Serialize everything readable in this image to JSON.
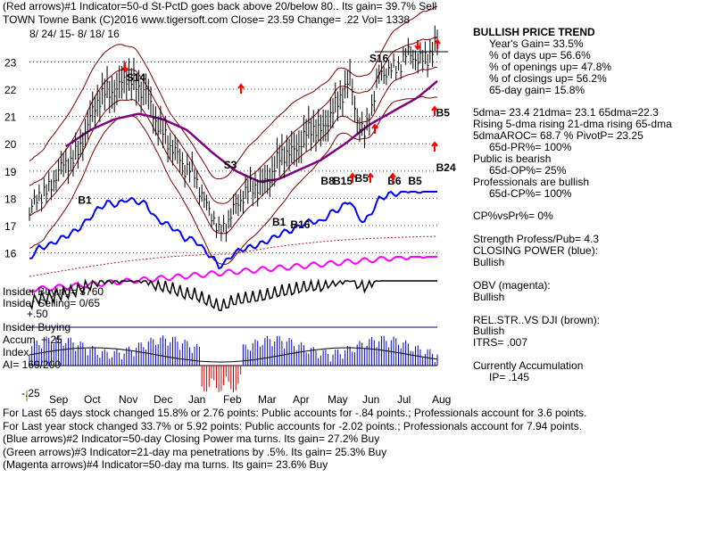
{
  "header": {
    "line1": "(Red arrows)#1 Indicator=50-d St-PctD goes back above 20/below 80.. Its gain= 39.7% Sell",
    "line2": "TOWN   Towne Bank  (C)2016 www.tigersoft.com    Close=  23.59  Change= .22 Vol= 1338",
    "date_range": "8/ 24/ 15-  8/ 18/ 16"
  },
  "side_panel": [
    {
      "text": "BULLISH PRICE TREND",
      "bold": true,
      "indent": 0
    },
    {
      "text": "Year's Gain= 33.5%",
      "bold": false,
      "indent": 18
    },
    {
      "text": "% of days up= 56.6%",
      "bold": false,
      "indent": 18
    },
    {
      "text": "% of openings up= 47.8%",
      "bold": false,
      "indent": 18
    },
    {
      "text": "% of closings up= 56.2%",
      "bold": false,
      "indent": 18
    },
    {
      "text": "65-day gain= 15.8%",
      "bold": false,
      "indent": 18
    },
    {
      "text": "",
      "bold": false,
      "indent": 0
    },
    {
      "text": "5dma= 23.4  21dma= 23.1  65dma=22.3",
      "bold": false,
      "indent": 0
    },
    {
      "text": "Rising 5-dma rising 21-dma rising 65-dma",
      "bold": false,
      "indent": 0
    },
    {
      "text": "5dmaAROC= 68.7 %  PivotP= 23.25",
      "bold": false,
      "indent": 0
    },
    {
      "text": "65d-PR%= 100%",
      "bold": false,
      "indent": 18
    },
    {
      "text": "Public is bearish",
      "bold": false,
      "indent": 0
    },
    {
      "text": "65d-OP%=  25%",
      "bold": false,
      "indent": 18
    },
    {
      "text": "Professionals are bullish",
      "bold": false,
      "indent": 0
    },
    {
      "text": "65d-CP%= 100%",
      "bold": false,
      "indent": 18
    },
    {
      "text": "",
      "bold": false,
      "indent": 0
    },
    {
      "text": "CP%vsPr%=  0%",
      "bold": false,
      "indent": 0
    },
    {
      "text": "",
      "bold": false,
      "indent": 0
    },
    {
      "text": "Strength Profess/Pub= 4.3",
      "bold": false,
      "indent": 0
    },
    {
      "text": "CLOSING POWER (blue):",
      "bold": false,
      "indent": 0
    },
    {
      "text": "Bullish",
      "bold": false,
      "indent": 0
    },
    {
      "text": "",
      "bold": false,
      "indent": 0
    },
    {
      "text": "OBV (magenta):",
      "bold": false,
      "indent": 0
    },
    {
      "text": "Bullish",
      "bold": false,
      "indent": 0
    },
    {
      "text": "",
      "bold": false,
      "indent": 0
    },
    {
      "text": "REL.STR..VS DJI (brown):",
      "bold": false,
      "indent": 0
    },
    {
      "text": "Bullish",
      "bold": false,
      "indent": 0
    },
    {
      "text": "ITRS= .007",
      "bold": false,
      "indent": 0
    },
    {
      "text": "",
      "bold": false,
      "indent": 0
    },
    {
      "text": "Currently Accumulation",
      "bold": false,
      "indent": 0
    },
    {
      "text": "IP=  .145",
      "bold": false,
      "indent": 18
    }
  ],
  "insider": {
    "buying": "Insider Buying= 3760",
    "selling": "Insider Selling= 0/65",
    "plus50": "+.50",
    "buying2": "Insider Buying",
    "accum": "Accum",
    "plus25": "+.25",
    "index": "Index",
    "ai": "AI= 169/200",
    "minus25": "-.25"
  },
  "footer": [
    "For Last 65 days stock changed  15.8% or  2.76 points:  Public accounts for -.84 points.;  Professionals account for  3.6 points.",
    "For Last year stock changed  33.7% or  5.92 points:  Public accounts for -2.02 points.;  Professionals account for  7.94 points.",
    "(Blue arrows)#2 Indicator=50-day Closing Power ma turns. Its gain= 27.2% Buy",
    "(Green arrows)#3 Indicator=21-day ma penetrations by .5%. Its gain= 25.3% Buy",
    "(Magenta arrows)#4 Indicator=50-day ma turns. Its gain= 23.6% Buy"
  ],
  "colors": {
    "price": "#000000",
    "band": "#800000",
    "ma65": "#800080",
    "closing_power": "#0000ff",
    "obv": "#ff00ff",
    "rel_strength": "#b22222",
    "grid": "#008000",
    "accum": "#0000c0",
    "distrib": "#d00000",
    "arrow_red": "#ff0000",
    "rsi_line": "#000080"
  },
  "chart_data": {
    "type": "line",
    "y_ticks": [
      "16",
      "17",
      "18",
      "19",
      "20",
      "21",
      "22",
      "23"
    ],
    "ylim": [
      15.3,
      23.8
    ],
    "x_ticks": [
      "Sep",
      "Oct",
      "Nov",
      "Dec",
      "Jan",
      "Feb",
      "Mar",
      "Apr",
      "May",
      "Jun",
      "Jul",
      "Aug"
    ],
    "price_close": [
      {
        "x": 0,
        "y": 17.3
      },
      {
        "x": 8,
        "y": 18.2
      },
      {
        "x": 16,
        "y": 18.4
      },
      {
        "x": 24,
        "y": 18.9
      },
      {
        "x": 32,
        "y": 19.3
      },
      {
        "x": 40,
        "y": 19.8
      },
      {
        "x": 48,
        "y": 20.6
      },
      {
        "x": 56,
        "y": 21.5
      },
      {
        "x": 64,
        "y": 22.1
      },
      {
        "x": 72,
        "y": 21.9
      },
      {
        "x": 80,
        "y": 22.4
      },
      {
        "x": 88,
        "y": 22.2
      },
      {
        "x": 96,
        "y": 22.0
      },
      {
        "x": 104,
        "y": 20.7
      },
      {
        "x": 112,
        "y": 20.3
      },
      {
        "x": 120,
        "y": 19.8
      },
      {
        "x": 128,
        "y": 19.0
      },
      {
        "x": 136,
        "y": 18.9
      },
      {
        "x": 144,
        "y": 18.0
      },
      {
        "x": 152,
        "y": 17.2
      },
      {
        "x": 156,
        "y": 16.6
      },
      {
        "x": 160,
        "y": 16.8
      },
      {
        "x": 168,
        "y": 17.7
      },
      {
        "x": 176,
        "y": 18.1
      },
      {
        "x": 184,
        "y": 18.3
      },
      {
        "x": 192,
        "y": 18.6
      },
      {
        "x": 200,
        "y": 19.0
      },
      {
        "x": 208,
        "y": 19.5
      },
      {
        "x": 216,
        "y": 19.7
      },
      {
        "x": 224,
        "y": 20.2
      },
      {
        "x": 232,
        "y": 20.5
      },
      {
        "x": 240,
        "y": 20.4
      },
      {
        "x": 248,
        "y": 21.2
      },
      {
        "x": 256,
        "y": 21.6
      },
      {
        "x": 264,
        "y": 22.3
      },
      {
        "x": 270,
        "y": 21.0
      },
      {
        "x": 276,
        "y": 20.4
      },
      {
        "x": 282,
        "y": 21.3
      },
      {
        "x": 288,
        "y": 22.4
      },
      {
        "x": 296,
        "y": 22.8
      },
      {
        "x": 304,
        "y": 22.9
      },
      {
        "x": 312,
        "y": 23.2
      },
      {
        "x": 320,
        "y": 23.1
      },
      {
        "x": 328,
        "y": 23.3
      },
      {
        "x": 336,
        "y": 23.59
      }
    ],
    "ma65": [
      {
        "x": 30,
        "y": 19.9
      },
      {
        "x": 50,
        "y": 20.5
      },
      {
        "x": 70,
        "y": 20.9
      },
      {
        "x": 90,
        "y": 21.1
      },
      {
        "x": 110,
        "y": 20.9
      },
      {
        "x": 130,
        "y": 20.5
      },
      {
        "x": 150,
        "y": 19.7
      },
      {
        "x": 170,
        "y": 19.0
      },
      {
        "x": 190,
        "y": 18.6
      },
      {
        "x": 205,
        "y": 18.7
      },
      {
        "x": 220,
        "y": 19.0
      },
      {
        "x": 240,
        "y": 19.4
      },
      {
        "x": 260,
        "y": 20.0
      },
      {
        "x": 280,
        "y": 20.7
      },
      {
        "x": 300,
        "y": 21.2
      },
      {
        "x": 320,
        "y": 21.7
      },
      {
        "x": 336,
        "y": 22.3
      }
    ],
    "markers": [
      {
        "label": "S14",
        "x": 80,
        "y": 22.3,
        "color": "#000000"
      },
      {
        "label": "S3",
        "x": 160,
        "y": 19.1,
        "color": "#000000"
      },
      {
        "label": "S16",
        "x": 280,
        "y": 23.0,
        "color": "#000000"
      },
      {
        "label": "B1",
        "x": 40,
        "y": 17.8,
        "color": "#000000"
      },
      {
        "label": "B16",
        "x": 215,
        "y": 16.9,
        "color": "#000000"
      },
      {
        "label": "B1",
        "x": 200,
        "y": 17.0,
        "color": "#000000"
      },
      {
        "label": "B8",
        "x": 240,
        "y": 18.5,
        "color": "#000000"
      },
      {
        "label": "B15",
        "x": 250,
        "y": 18.5,
        "color": "#000000"
      },
      {
        "label": "B5",
        "x": 268,
        "y": 18.6,
        "color": "#000000"
      },
      {
        "label": "B6",
        "x": 295,
        "y": 18.5,
        "color": "#000000"
      },
      {
        "label": "B5",
        "x": 312,
        "y": 18.5,
        "color": "#000000"
      },
      {
        "label": "B5",
        "x": 335,
        "y": 21.0,
        "color": "#000000"
      },
      {
        "label": "B24",
        "x": 335,
        "y": 19.0,
        "color": "#000000"
      }
    ]
  }
}
